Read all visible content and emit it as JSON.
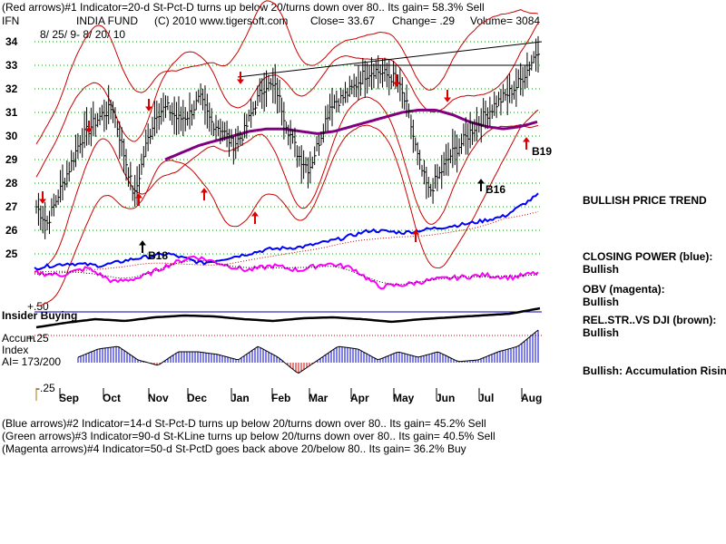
{
  "header": {
    "line1": "(Red arrows)#1 Indicator=20-d St-Pct-D turns up below 20/turns down over 80..  Its gain= 58.3% Sell",
    "symbol": "IFN",
    "name": "INDIA FUND",
    "copyright": "(C) 2010 www.tigersoft.com",
    "close": "Close=   33.67",
    "change": "Change= .29",
    "volume": "Volume=  3084",
    "date_range": "8/ 25/ 9-  8/ 20/ 10"
  },
  "right_panel": {
    "trend": "BULLISH PRICE TREND",
    "cp_label": "CLOSING POWER (blue):",
    "cp_value": "Bullish",
    "obv_label": "OBV (magenta):",
    "obv_value": "Bullish",
    "rs_label": "REL.STR..VS DJI (brown):",
    "rs_value": "Bullish",
    "accum": "Bullish: Accumulation Rising"
  },
  "accum_panel": {
    "plus50": "+.50",
    "insider": "Insider Buying",
    "plus25": "+.25",
    "accum": "Accum",
    "index": "Index",
    "ai": "AI= 173/200",
    "minus25": "-.25"
  },
  "footer": {
    "line2": "(Blue arrows)#2 Indicator=14-d St-Pct-D turns up below 20/turns down over 80..  Its gain= 45.2% Sell",
    "line3": "(Green arrows)#3 Indicator=90-d St-KLine turns up below 20/turns down over 80..  Its gain= 40.5% Sell",
    "line4": "(Magenta arrows)#4 Indicator=50-d St-PctD goes back above 20/below 80..  Its gain= 36.2% Buy"
  },
  "signal_labels": {
    "b18": "B18",
    "b16": "B16",
    "b19": "B19"
  },
  "colors": {
    "price_bars": "#000000",
    "bands": "#cc0000",
    "moving_average": "#800080",
    "closing_power": "#0000ff",
    "obv": "#ff00ff",
    "accum_bars_pos": "#0000cc",
    "accum_bars_neg": "#cc0000",
    "grid": "#009900"
  },
  "chart_data": {
    "type": "line",
    "ylim": [
      24.5,
      34.5
    ],
    "y_ticks": [
      34,
      33,
      32,
      31,
      30,
      29,
      28,
      27,
      26,
      25
    ],
    "x_ticks": [
      "Sep",
      "Oct",
      "Nov",
      "Dec",
      "Jan",
      "Feb",
      "Mar",
      "Apr",
      "May",
      "Jun",
      "Jul",
      "Aug"
    ],
    "price_close_approx": [
      27.0,
      26.3,
      27.5,
      28.6,
      29.8,
      30.4,
      30.9,
      31.2,
      29.3,
      27.4,
      29.5,
      31.0,
      31.2,
      30.7,
      30.9,
      31.6,
      30.6,
      30.3,
      29.6,
      30.1,
      31.3,
      32.2,
      32.0,
      30.4,
      29.2,
      28.6,
      29.9,
      31.4,
      31.6,
      32.0,
      32.6,
      32.8,
      32.6,
      32.4,
      31.2,
      29.0,
      27.6,
      28.4,
      29.2,
      29.7,
      30.3,
      30.8,
      31.3,
      31.7,
      32.1,
      32.8,
      33.7
    ],
    "ma50_approx": [
      29.0,
      29.3,
      29.6,
      29.8,
      30.0,
      30.2,
      30.3,
      30.3,
      30.2,
      30.1,
      30.2,
      30.4,
      30.6,
      30.8,
      31.0,
      31.1,
      31.1,
      30.9,
      30.6,
      30.4,
      30.3,
      30.4,
      30.6
    ],
    "signals": [
      {
        "label": "B18"
      },
      {
        "label": "B16"
      },
      {
        "label": "B19"
      }
    ]
  }
}
